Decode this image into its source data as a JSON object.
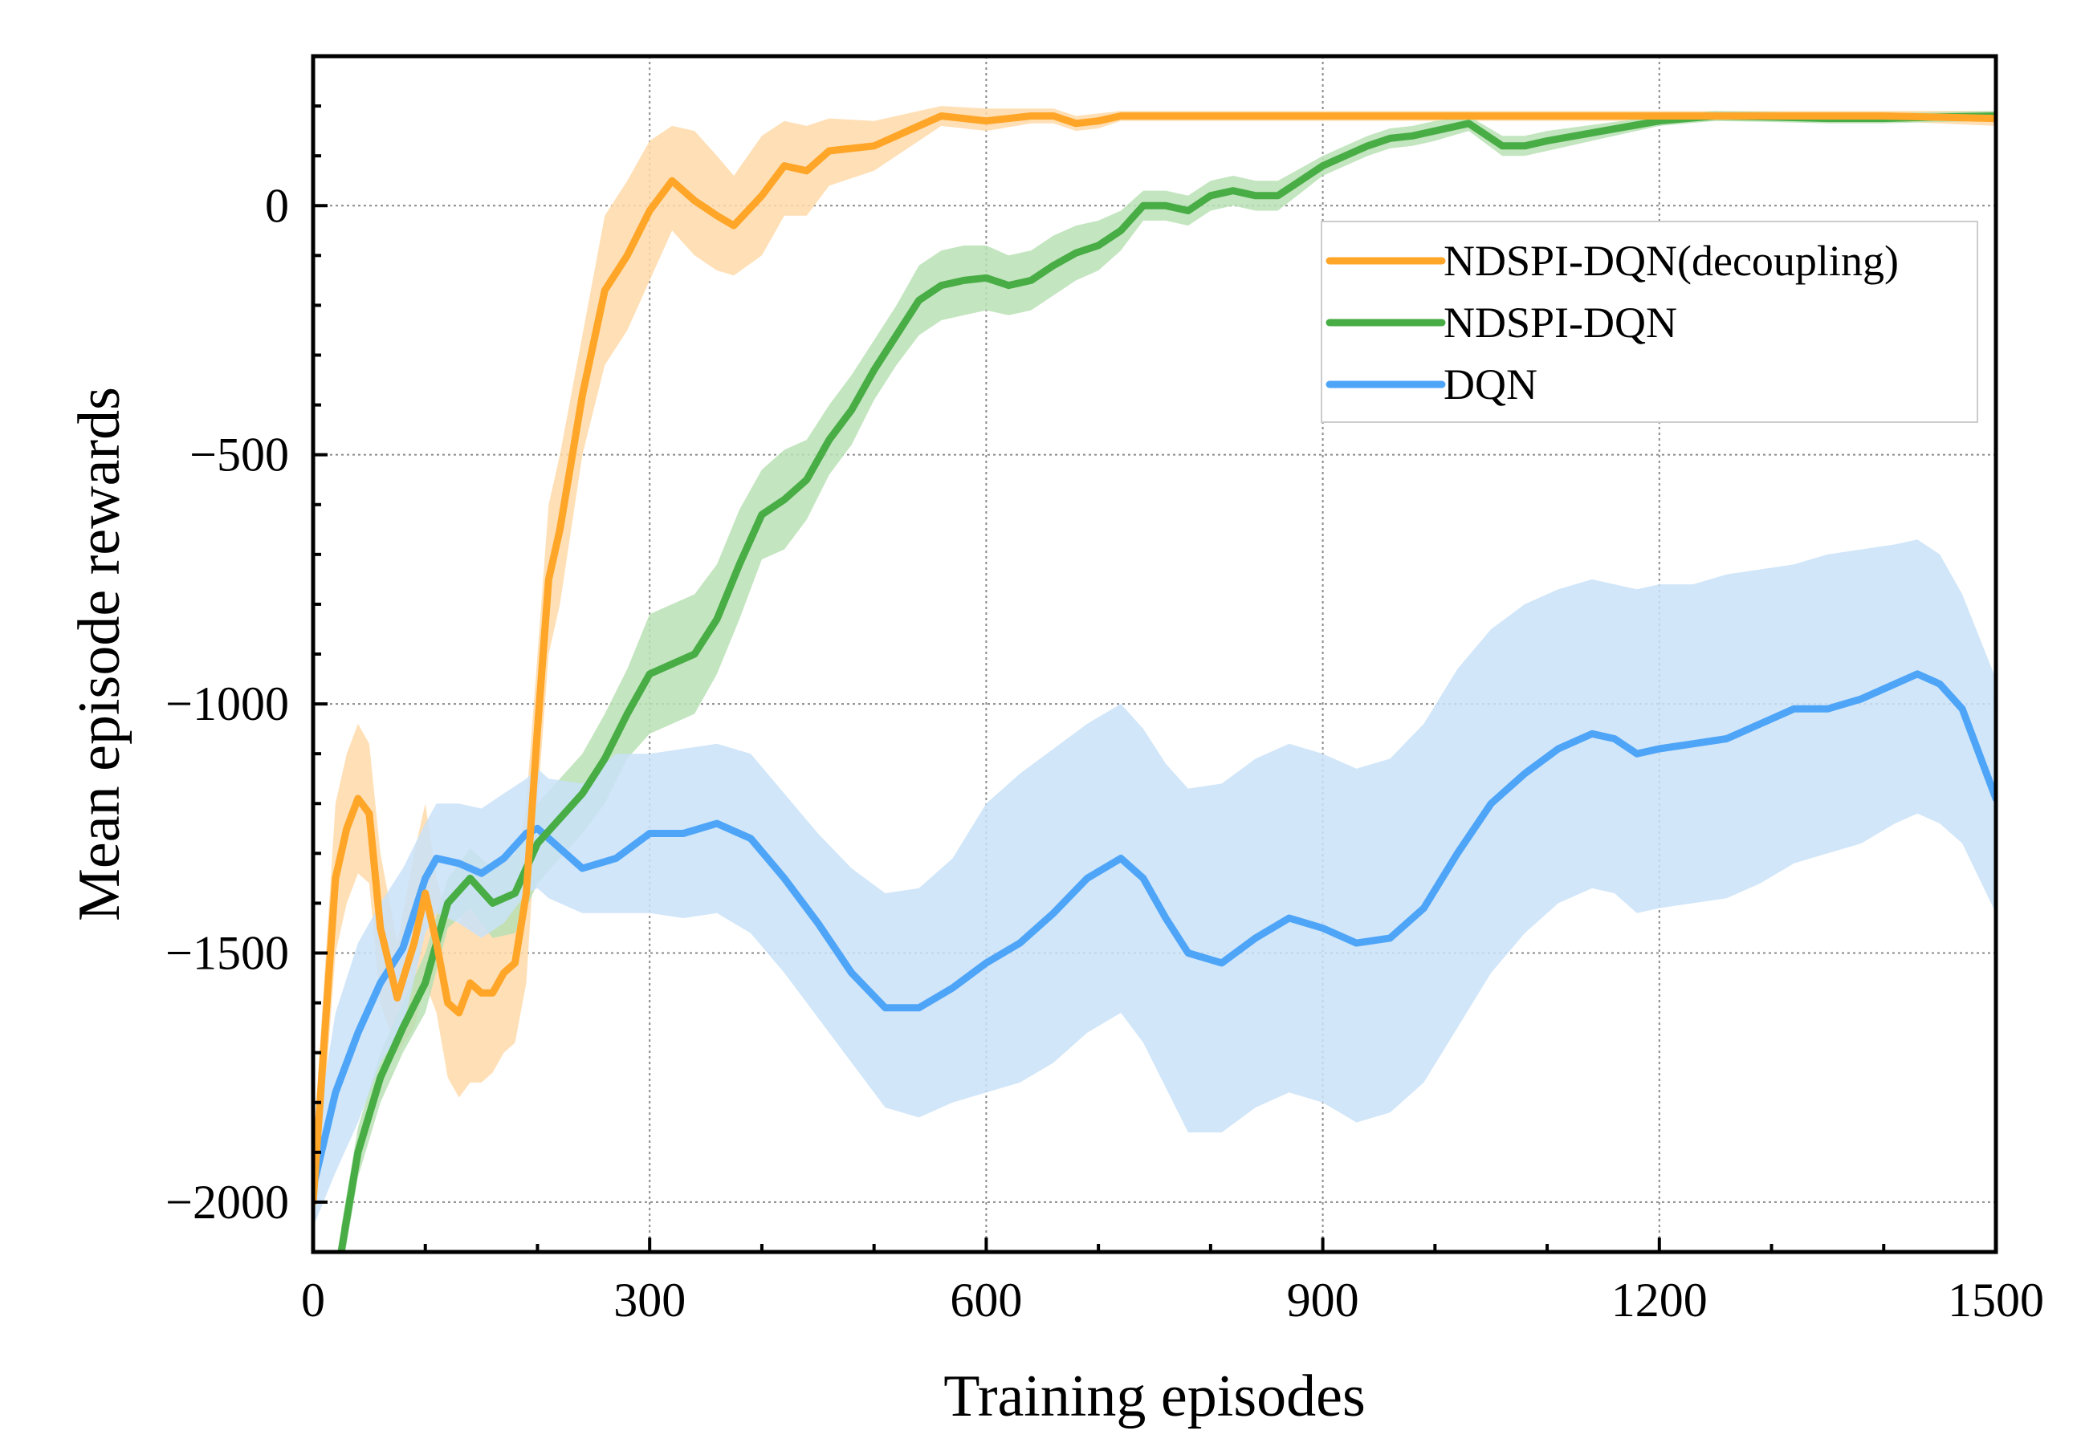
{
  "chart_data": {
    "type": "line",
    "title": "",
    "xlabel": "Training episodes",
    "ylabel": "Mean episode rewards",
    "xlim": [
      0,
      1500
    ],
    "ylim": [
      -2100,
      300
    ],
    "xticks": [
      0,
      300,
      600,
      900,
      1200,
      1500
    ],
    "xtick_labels": [
      "0",
      "300",
      "600",
      "900",
      "1200",
      "1500"
    ],
    "yticks": [
      -2000,
      -1500,
      -1000,
      -500,
      0
    ],
    "ytick_labels": [
      "−2000",
      "−1500",
      "−1000",
      "−500",
      "0"
    ],
    "grid": true,
    "legend_position": "top-right",
    "series": [
      {
        "name": "NDSPI-DQN(decoupling)",
        "color": "#ffa528",
        "band_color": "#ffd9a8",
        "x": [
          0,
          20,
          30,
          40,
          50,
          60,
          75,
          90,
          100,
          110,
          120,
          130,
          140,
          150,
          160,
          170,
          180,
          190,
          200,
          210,
          220,
          240,
          260,
          280,
          300,
          320,
          340,
          360,
          375,
          400,
          420,
          440,
          460,
          500,
          540,
          560,
          600,
          640,
          660,
          680,
          700,
          720,
          800,
          900,
          1000,
          1100,
          1200,
          1300,
          1400,
          1500
        ],
        "y": [
          -2000,
          -1350,
          -1250,
          -1190,
          -1220,
          -1450,
          -1590,
          -1480,
          -1380,
          -1480,
          -1600,
          -1620,
          -1560,
          -1580,
          -1580,
          -1540,
          -1520,
          -1380,
          -1050,
          -750,
          -650,
          -380,
          -170,
          -100,
          -10,
          50,
          10,
          -20,
          -40,
          20,
          80,
          70,
          110,
          120,
          160,
          180,
          170,
          180,
          180,
          165,
          170,
          180,
          180,
          180,
          180,
          180,
          180,
          180,
          180,
          175
        ],
        "upper": [
          -1900,
          -1200,
          -1100,
          -1040,
          -1080,
          -1300,
          -1480,
          -1300,
          -1200,
          -1350,
          -1430,
          -1440,
          -1380,
          -1420,
          -1400,
          -1380,
          -1360,
          -1200,
          -900,
          -600,
          -500,
          -260,
          -20,
          50,
          130,
          160,
          150,
          100,
          60,
          140,
          170,
          160,
          175,
          170,
          190,
          200,
          195,
          195,
          195,
          180,
          185,
          190,
          190,
          190,
          190,
          190,
          190,
          190,
          190,
          190
        ],
        "lower": [
          -2100,
          -1500,
          -1400,
          -1340,
          -1360,
          -1600,
          -1700,
          -1650,
          -1560,
          -1620,
          -1750,
          -1790,
          -1760,
          -1760,
          -1740,
          -1700,
          -1680,
          -1560,
          -1200,
          -900,
          -800,
          -500,
          -320,
          -250,
          -150,
          -50,
          -100,
          -130,
          -140,
          -100,
          -20,
          -20,
          40,
          70,
          130,
          160,
          150,
          165,
          165,
          150,
          155,
          170,
          170,
          170,
          170,
          170,
          170,
          170,
          170,
          160
        ]
      },
      {
        "name": "NDSPI-DQN",
        "color": "#48ad45",
        "band_color": "#b8e0b4",
        "x": [
          25,
          40,
          60,
          80,
          100,
          120,
          140,
          160,
          180,
          200,
          220,
          240,
          260,
          280,
          300,
          320,
          340,
          360,
          380,
          400,
          420,
          440,
          460,
          480,
          500,
          520,
          540,
          560,
          580,
          600,
          620,
          640,
          660,
          680,
          700,
          720,
          740,
          760,
          780,
          800,
          820,
          840,
          860,
          880,
          900,
          920,
          940,
          960,
          980,
          1000,
          1030,
          1060,
          1080,
          1100,
          1150,
          1200,
          1250,
          1300,
          1350,
          1400,
          1450,
          1500
        ],
        "y": [
          -2100,
          -1900,
          -1750,
          -1650,
          -1560,
          -1400,
          -1350,
          -1400,
          -1380,
          -1280,
          -1230,
          -1180,
          -1110,
          -1020,
          -940,
          -920,
          -900,
          -830,
          -720,
          -620,
          -590,
          -550,
          -470,
          -410,
          -330,
          -260,
          -190,
          -160,
          -150,
          -145,
          -160,
          -150,
          -120,
          -95,
          -80,
          -50,
          0,
          0,
          -10,
          20,
          30,
          20,
          20,
          50,
          80,
          100,
          120,
          135,
          140,
          150,
          165,
          120,
          120,
          130,
          150,
          170,
          180,
          178,
          175,
          175,
          178,
          180
        ],
        "upper": [
          -2050,
          -1850,
          -1700,
          -1600,
          -1500,
          -1350,
          -1290,
          -1330,
          -1300,
          -1200,
          -1150,
          -1100,
          -1020,
          -930,
          -820,
          -800,
          -780,
          -720,
          -610,
          -530,
          -490,
          -470,
          -400,
          -340,
          -270,
          -200,
          -120,
          -90,
          -80,
          -80,
          -100,
          -90,
          -60,
          -40,
          -30,
          -10,
          30,
          30,
          20,
          50,
          60,
          50,
          50,
          75,
          100,
          120,
          140,
          155,
          160,
          170,
          180,
          140,
          140,
          150,
          165,
          180,
          190,
          188,
          185,
          185,
          188,
          190
        ],
        "lower": [
          -2150,
          -1950,
          -1800,
          -1700,
          -1620,
          -1450,
          -1410,
          -1470,
          -1460,
          -1360,
          -1310,
          -1260,
          -1200,
          -1110,
          -1060,
          -1040,
          -1020,
          -940,
          -830,
          -710,
          -690,
          -630,
          -540,
          -480,
          -390,
          -320,
          -260,
          -230,
          -220,
          -210,
          -220,
          -210,
          -180,
          -150,
          -130,
          -90,
          -30,
          -30,
          -40,
          -10,
          0,
          -10,
          -10,
          25,
          60,
          80,
          100,
          115,
          120,
          130,
          150,
          100,
          100,
          110,
          135,
          160,
          170,
          168,
          165,
          165,
          168,
          170
        ]
      },
      {
        "name": "DQN",
        "color": "#4ea5f8",
        "band_color": "#c9e2f8",
        "x": [
          0,
          20,
          40,
          60,
          80,
          100,
          110,
          130,
          150,
          170,
          190,
          200,
          210,
          240,
          270,
          300,
          330,
          360,
          390,
          420,
          450,
          480,
          510,
          540,
          570,
          600,
          630,
          660,
          690,
          720,
          740,
          760,
          780,
          810,
          840,
          870,
          900,
          930,
          960,
          990,
          1020,
          1050,
          1080,
          1110,
          1140,
          1160,
          1180,
          1200,
          1230,
          1260,
          1290,
          1320,
          1350,
          1380,
          1410,
          1430,
          1450,
          1470,
          1500
        ],
        "y": [
          -1970,
          -1780,
          -1660,
          -1560,
          -1490,
          -1350,
          -1310,
          -1320,
          -1340,
          -1310,
          -1260,
          -1250,
          -1270,
          -1330,
          -1310,
          -1260,
          -1260,
          -1240,
          -1270,
          -1350,
          -1440,
          -1540,
          -1610,
          -1610,
          -1570,
          -1520,
          -1480,
          -1420,
          -1350,
          -1310,
          -1350,
          -1430,
          -1500,
          -1520,
          -1470,
          -1430,
          -1450,
          -1480,
          -1470,
          -1410,
          -1300,
          -1200,
          -1140,
          -1090,
          -1060,
          -1070,
          -1100,
          -1090,
          -1080,
          -1070,
          -1040,
          -1010,
          -1010,
          -990,
          -960,
          -940,
          -960,
          -1010,
          -1190
        ],
        "upper": [
          -1900,
          -1620,
          -1480,
          -1400,
          -1330,
          -1240,
          -1200,
          -1200,
          -1210,
          -1180,
          -1150,
          -1130,
          -1150,
          -1160,
          -1100,
          -1100,
          -1090,
          -1080,
          -1100,
          -1180,
          -1260,
          -1330,
          -1380,
          -1370,
          -1310,
          -1200,
          -1140,
          -1090,
          -1040,
          -1000,
          -1050,
          -1120,
          -1170,
          -1160,
          -1110,
          -1080,
          -1100,
          -1130,
          -1110,
          -1040,
          -930,
          -850,
          -800,
          -770,
          -750,
          -760,
          -770,
          -760,
          -760,
          -740,
          -730,
          -720,
          -700,
          -690,
          -680,
          -670,
          -700,
          -780,
          -950
        ],
        "lower": [
          -2050,
          -1940,
          -1840,
          -1720,
          -1650,
          -1460,
          -1420,
          -1440,
          -1470,
          -1440,
          -1380,
          -1370,
          -1390,
          -1420,
          -1420,
          -1420,
          -1430,
          -1420,
          -1460,
          -1540,
          -1630,
          -1720,
          -1810,
          -1830,
          -1800,
          -1780,
          -1760,
          -1720,
          -1660,
          -1620,
          -1680,
          -1770,
          -1860,
          -1860,
          -1810,
          -1780,
          -1800,
          -1840,
          -1820,
          -1760,
          -1650,
          -1540,
          -1460,
          -1400,
          -1370,
          -1380,
          -1420,
          -1410,
          -1400,
          -1390,
          -1360,
          -1320,
          -1300,
          -1280,
          -1240,
          -1220,
          -1240,
          -1280,
          -1420
        ]
      }
    ]
  }
}
